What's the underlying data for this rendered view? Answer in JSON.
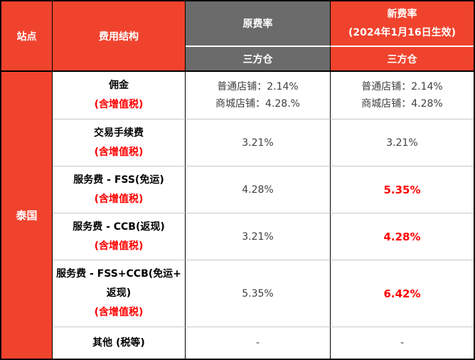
{
  "colors": {
    "accent_red": "#F0432D",
    "header_gray": "#6B6B6B",
    "highlight_red": "#FF0000",
    "row_divider_gray": "#C8C8C8",
    "border_black": "#000000",
    "header_text_white": "#FFFFFF"
  },
  "header": {
    "site": "站点",
    "fee_structure": "费用结构",
    "old_rate": "原费率",
    "new_rate_line1": "新费率",
    "new_rate_line2": "(2024年1月16日生效)",
    "old_rate_sub": "三方仓",
    "new_rate_sub": "三方仓"
  },
  "site_label": "泰国",
  "rows": [
    {
      "name_lines": [
        "佣金"
      ],
      "vat_note": "(含增值税)",
      "old_lines": [
        "普通店铺：2.14%",
        "商城店铺：4.28.%"
      ],
      "new_lines": [
        "普通店铺：2.14%",
        "商城店铺：4.28%"
      ],
      "new_highlighted": false
    },
    {
      "name_lines": [
        "交易手续费"
      ],
      "vat_note": "(含增值税)",
      "old_lines": [
        "3.21%"
      ],
      "new_lines": [
        "3.21%"
      ],
      "new_highlighted": false
    },
    {
      "name_lines": [
        "服务费 - FSS(免运)"
      ],
      "vat_note": "(含增值税)",
      "old_lines": [
        "4.28%"
      ],
      "new_lines": [
        "5.35%"
      ],
      "new_highlighted": true
    },
    {
      "name_lines": [
        "服务费 - CCB(返现)"
      ],
      "vat_note": "(含增值税)",
      "old_lines": [
        "3.21%"
      ],
      "new_lines": [
        "4.28%"
      ],
      "new_highlighted": true
    },
    {
      "name_lines": [
        "服务费 - FSS+CCB(免运+",
        "返现)"
      ],
      "vat_note": "(含增值税)",
      "old_lines": [
        "5.35%"
      ],
      "new_lines": [
        "6.42%"
      ],
      "new_highlighted": true
    },
    {
      "name_lines": [
        "其他 (税等)"
      ],
      "vat_note": "",
      "old_lines": [
        "-"
      ],
      "new_lines": [
        "-"
      ],
      "new_highlighted": false
    }
  ]
}
